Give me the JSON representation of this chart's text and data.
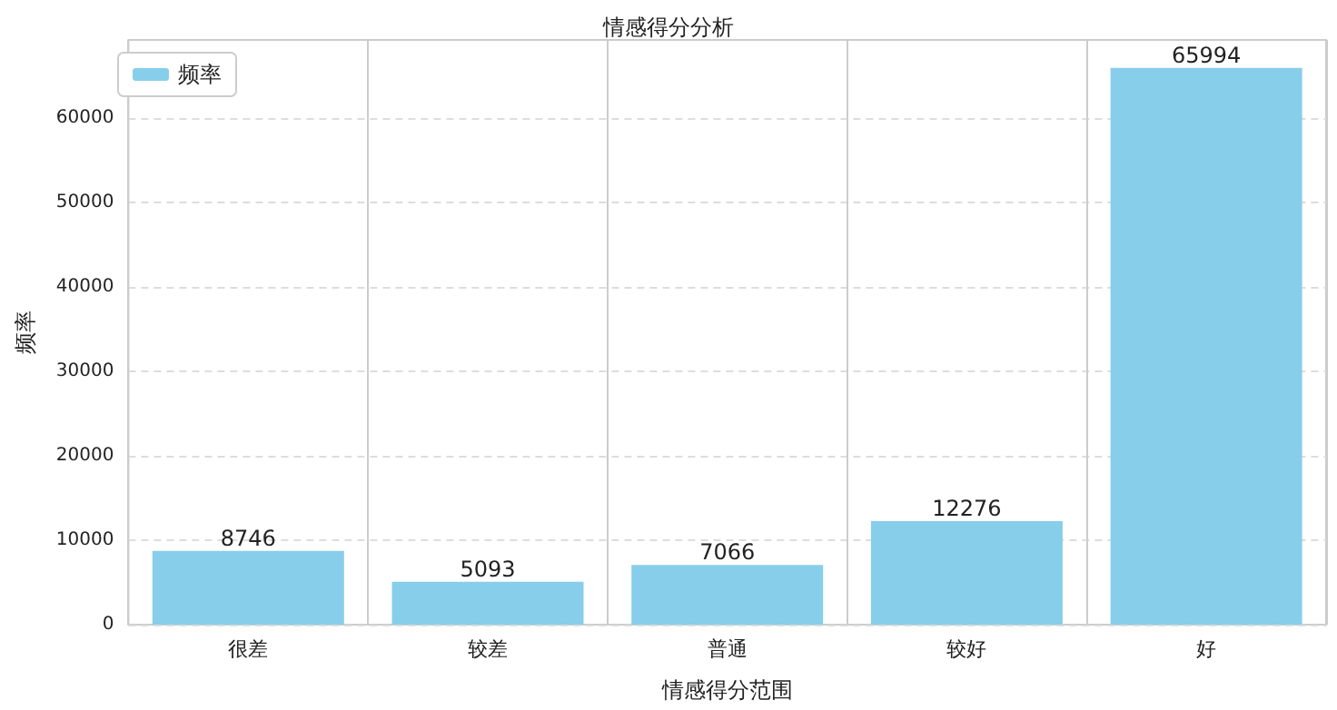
{
  "chart_data": {
    "type": "bar",
    "title": "情感得分分析",
    "xlabel": "情感得分范围",
    "ylabel": "频率",
    "categories": [
      "很差",
      "较差",
      "普通",
      "较好",
      "好"
    ],
    "series": [
      {
        "name": "频率",
        "color": "#87ceeb",
        "values": [
          8746,
          5093,
          7066,
          12276,
          65994
        ]
      }
    ],
    "ylim": [
      0,
      69300
    ],
    "yticks": [
      0,
      10000,
      20000,
      30000,
      40000,
      50000,
      60000
    ],
    "grid": true,
    "legend": "top left",
    "data_labels": true
  }
}
